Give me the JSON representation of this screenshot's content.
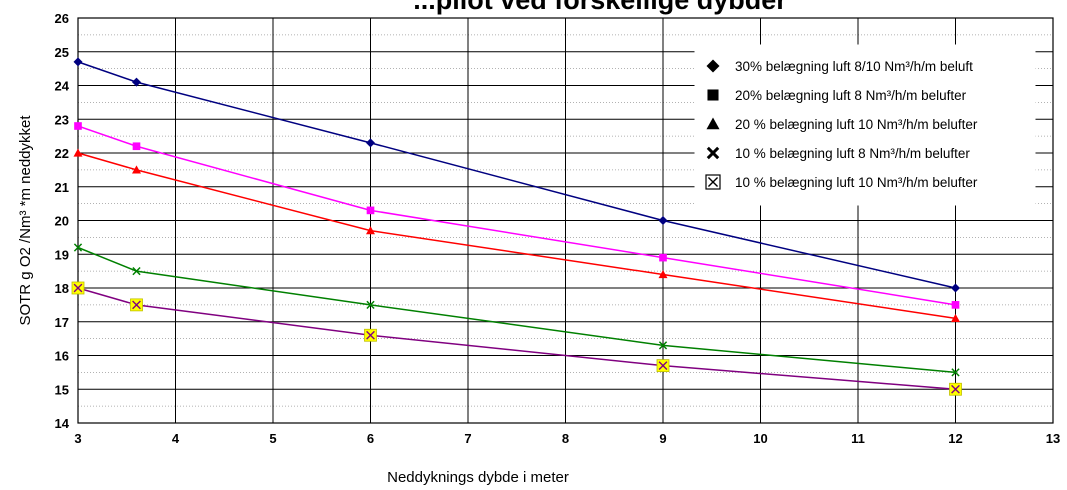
{
  "chart_data": {
    "type": "line",
    "title": "...pilot ved forskellige dybder",
    "xlabel": "Neddyknings dybde i meter",
    "ylabel": "SOTR  g O2 /Nm³ *m  neddykket",
    "xlim": [
      3,
      13
    ],
    "ylim": [
      14,
      26
    ],
    "x_ticks": [
      "3",
      "4",
      "5",
      "6",
      "7",
      "8",
      "9",
      "10",
      "11",
      "12",
      "13"
    ],
    "y_ticks": [
      "14",
      "15",
      "16",
      "17",
      "18",
      "19",
      "20",
      "21",
      "22",
      "23",
      "24",
      "25",
      "26"
    ],
    "grid": true,
    "legend_position": "top-right",
    "series": [
      {
        "name": "30% belægning  luft 8/10 Nm³/h/m beluft",
        "color": "#000080",
        "marker": "diamond",
        "marker_color": "#000080",
        "x": [
          3,
          3.6,
          6,
          9,
          12
        ],
        "y": [
          24.7,
          24.1,
          22.3,
          20.0,
          18.0
        ]
      },
      {
        "name": "20% belægning  luft 8 Nm³/h/m belufter",
        "color": "#FF00FF",
        "marker": "square",
        "marker_color": "#FF00FF",
        "x": [
          3,
          3.6,
          6,
          9,
          12
        ],
        "y": [
          22.8,
          22.2,
          20.3,
          18.9,
          17.5
        ]
      },
      {
        "name": "20 % belægning  luft 10 Nm³/h/m belufter",
        "color": "#FF0000",
        "marker": "triangle",
        "marker_color": "#FF0000",
        "x": [
          3,
          3.6,
          6,
          9,
          12
        ],
        "y": [
          22.0,
          21.5,
          19.7,
          18.4,
          17.1
        ]
      },
      {
        "name": "10 % belægning luft 8 Nm³/h/m belufter",
        "color": "#008000",
        "marker": "x",
        "marker_color": "#008000",
        "x": [
          3,
          3.6,
          6,
          9,
          12
        ],
        "y": [
          19.2,
          18.5,
          17.5,
          16.3,
          15.5
        ]
      },
      {
        "name": "10 % belægning  luft 10 Nm³/h/m belufter",
        "color": "#800080",
        "marker": "boxed-x",
        "marker_color": "#FFFF00",
        "x": [
          3,
          3.6,
          6,
          9,
          12
        ],
        "y": [
          18.0,
          17.5,
          16.6,
          15.7,
          15.0
        ]
      }
    ]
  }
}
